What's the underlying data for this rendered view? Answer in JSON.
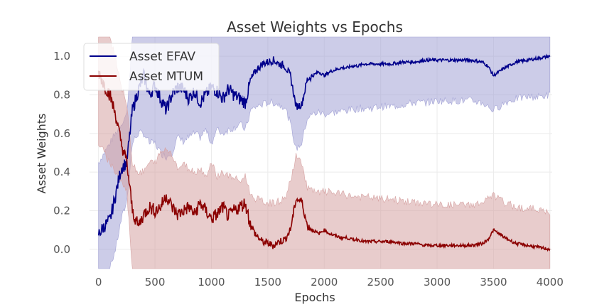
{
  "chart_data": {
    "type": "line",
    "title": "Asset Weights vs Epochs",
    "xlabel": "Epochs",
    "ylabel": "Asset Weights",
    "xlim": [
      -80,
      4020
    ],
    "ylim": [
      -0.1,
      1.1
    ],
    "xticks": [
      0,
      500,
      1000,
      1500,
      2000,
      2500,
      3000,
      3500,
      4000
    ],
    "yticks": [
      "0.0",
      "0.2",
      "0.4",
      "0.6",
      "0.8",
      "1.0"
    ],
    "grid": true,
    "legend_position": "top-left",
    "series": [
      {
        "name": "Asset EFAV",
        "color": "#00008b",
        "band_color": "#a3a3d6",
        "points": [
          [
            0,
            0.08
          ],
          [
            50,
            0.12
          ],
          [
            100,
            0.15
          ],
          [
            150,
            0.28
          ],
          [
            200,
            0.42
          ],
          [
            250,
            0.45
          ],
          [
            300,
            0.72
          ],
          [
            350,
            0.82
          ],
          [
            400,
            0.9
          ],
          [
            450,
            0.8
          ],
          [
            500,
            0.85
          ],
          [
            550,
            0.78
          ],
          [
            600,
            0.72
          ],
          [
            650,
            0.8
          ],
          [
            700,
            0.84
          ],
          [
            750,
            0.83
          ],
          [
            800,
            0.78
          ],
          [
            850,
            0.82
          ],
          [
            900,
            0.76
          ],
          [
            950,
            0.8
          ],
          [
            1000,
            0.84
          ],
          [
            1050,
            0.82
          ],
          [
            1100,
            0.78
          ],
          [
            1150,
            0.83
          ],
          [
            1200,
            0.8
          ],
          [
            1250,
            0.78
          ],
          [
            1300,
            0.76
          ],
          [
            1350,
            0.88
          ],
          [
            1400,
            0.93
          ],
          [
            1450,
            0.96
          ],
          [
            1500,
            0.97
          ],
          [
            1550,
            0.98
          ],
          [
            1600,
            0.96
          ],
          [
            1650,
            0.95
          ],
          [
            1700,
            0.9
          ],
          [
            1750,
            0.74
          ],
          [
            1800,
            0.75
          ],
          [
            1850,
            0.88
          ],
          [
            1900,
            0.9
          ],
          [
            1950,
            0.92
          ],
          [
            2000,
            0.9
          ],
          [
            2050,
            0.92
          ],
          [
            2100,
            0.93
          ],
          [
            2150,
            0.94
          ],
          [
            2200,
            0.94
          ],
          [
            2250,
            0.95
          ],
          [
            2300,
            0.95
          ],
          [
            2350,
            0.96
          ],
          [
            2400,
            0.96
          ],
          [
            2450,
            0.96
          ],
          [
            2500,
            0.96
          ],
          [
            2600,
            0.96
          ],
          [
            2700,
            0.97
          ],
          [
            2800,
            0.97
          ],
          [
            2900,
            0.98
          ],
          [
            3000,
            0.98
          ],
          [
            3100,
            0.98
          ],
          [
            3200,
            0.98
          ],
          [
            3300,
            0.98
          ],
          [
            3400,
            0.97
          ],
          [
            3450,
            0.95
          ],
          [
            3500,
            0.9
          ],
          [
            3550,
            0.92
          ],
          [
            3600,
            0.94
          ],
          [
            3700,
            0.97
          ],
          [
            3800,
            0.98
          ],
          [
            3900,
            0.99
          ],
          [
            4000,
            1.0
          ]
        ],
        "band": [
          [
            0,
            -0.1,
            0.45
          ],
          [
            50,
            -0.1,
            0.5
          ],
          [
            100,
            -0.1,
            0.55
          ],
          [
            150,
            0.0,
            0.6
          ],
          [
            200,
            0.15,
            0.65
          ],
          [
            250,
            0.25,
            0.7
          ],
          [
            300,
            0.55,
            1.1
          ],
          [
            350,
            0.6,
            1.1
          ],
          [
            400,
            0.6,
            1.1
          ],
          [
            450,
            0.55,
            1.1
          ],
          [
            500,
            0.55,
            1.1
          ],
          [
            550,
            0.5,
            1.1
          ],
          [
            600,
            0.48,
            1.1
          ],
          [
            650,
            0.5,
            1.1
          ],
          [
            700,
            0.58,
            1.1
          ],
          [
            750,
            0.56,
            1.1
          ],
          [
            800,
            0.58,
            1.1
          ],
          [
            850,
            0.6,
            1.1
          ],
          [
            900,
            0.58,
            1.1
          ],
          [
            950,
            0.62,
            1.1
          ],
          [
            1000,
            0.55,
            1.1
          ],
          [
            1050,
            0.62,
            1.1
          ],
          [
            1100,
            0.6,
            1.1
          ],
          [
            1150,
            0.62,
            1.1
          ],
          [
            1200,
            0.63,
            1.1
          ],
          [
            1250,
            0.65,
            1.1
          ],
          [
            1300,
            0.62,
            1.1
          ],
          [
            1350,
            0.72,
            1.1
          ],
          [
            1400,
            0.74,
            1.1
          ],
          [
            1450,
            0.75,
            1.1
          ],
          [
            1500,
            0.76,
            1.1
          ],
          [
            1550,
            0.76,
            1.1
          ],
          [
            1600,
            0.75,
            1.1
          ],
          [
            1650,
            0.74,
            1.1
          ],
          [
            1700,
            0.65,
            1.1
          ],
          [
            1750,
            0.52,
            1.1
          ],
          [
            1800,
            0.55,
            1.1
          ],
          [
            1850,
            0.68,
            1.1
          ],
          [
            1900,
            0.7,
            1.1
          ],
          [
            1950,
            0.71,
            1.1
          ],
          [
            2000,
            0.7,
            1.1
          ],
          [
            2100,
            0.71,
            1.1
          ],
          [
            2200,
            0.72,
            1.1
          ],
          [
            2300,
            0.73,
            1.1
          ],
          [
            2400,
            0.73,
            1.1
          ],
          [
            2500,
            0.74,
            1.1
          ],
          [
            2600,
            0.74,
            1.1
          ],
          [
            2700,
            0.75,
            1.1
          ],
          [
            2800,
            0.76,
            1.1
          ],
          [
            2900,
            0.76,
            1.1
          ],
          [
            3000,
            0.77,
            1.1
          ],
          [
            3100,
            0.77,
            1.1
          ],
          [
            3200,
            0.77,
            1.1
          ],
          [
            3300,
            0.77,
            1.1
          ],
          [
            3400,
            0.76,
            1.1
          ],
          [
            3500,
            0.72,
            1.1
          ],
          [
            3600,
            0.76,
            1.1
          ],
          [
            3700,
            0.78,
            1.1
          ],
          [
            3800,
            0.79,
            1.1
          ],
          [
            3900,
            0.79,
            1.1
          ],
          [
            4000,
            0.8,
            1.1
          ]
        ]
      },
      {
        "name": "Asset MTUM",
        "color": "#8b0000",
        "band_color": "#d6a3a3",
        "points": [
          [
            0,
            0.92
          ],
          [
            50,
            0.85
          ],
          [
            100,
            0.8
          ],
          [
            150,
            0.7
          ],
          [
            200,
            0.55
          ],
          [
            250,
            0.45
          ],
          [
            300,
            0.2
          ],
          [
            350,
            0.12
          ],
          [
            400,
            0.18
          ],
          [
            450,
            0.22
          ],
          [
            500,
            0.2
          ],
          [
            550,
            0.22
          ],
          [
            600,
            0.28
          ],
          [
            650,
            0.22
          ],
          [
            700,
            0.18
          ],
          [
            750,
            0.2
          ],
          [
            800,
            0.22
          ],
          [
            850,
            0.18
          ],
          [
            900,
            0.24
          ],
          [
            950,
            0.2
          ],
          [
            1000,
            0.16
          ],
          [
            1050,
            0.18
          ],
          [
            1100,
            0.22
          ],
          [
            1150,
            0.17
          ],
          [
            1200,
            0.2
          ],
          [
            1250,
            0.22
          ],
          [
            1300,
            0.24
          ],
          [
            1350,
            0.12
          ],
          [
            1400,
            0.07
          ],
          [
            1450,
            0.04
          ],
          [
            1500,
            0.03
          ],
          [
            1550,
            0.02
          ],
          [
            1600,
            0.04
          ],
          [
            1650,
            0.05
          ],
          [
            1700,
            0.1
          ],
          [
            1750,
            0.26
          ],
          [
            1800,
            0.25
          ],
          [
            1850,
            0.12
          ],
          [
            1900,
            0.1
          ],
          [
            1950,
            0.08
          ],
          [
            2000,
            0.1
          ],
          [
            2050,
            0.08
          ],
          [
            2100,
            0.07
          ],
          [
            2150,
            0.06
          ],
          [
            2200,
            0.06
          ],
          [
            2250,
            0.05
          ],
          [
            2300,
            0.05
          ],
          [
            2350,
            0.04
          ],
          [
            2400,
            0.04
          ],
          [
            2450,
            0.04
          ],
          [
            2500,
            0.04
          ],
          [
            2600,
            0.04
          ],
          [
            2700,
            0.03
          ],
          [
            2800,
            0.03
          ],
          [
            2900,
            0.02
          ],
          [
            3000,
            0.02
          ],
          [
            3100,
            0.02
          ],
          [
            3200,
            0.02
          ],
          [
            3300,
            0.02
          ],
          [
            3400,
            0.03
          ],
          [
            3450,
            0.05
          ],
          [
            3500,
            0.1
          ],
          [
            3550,
            0.08
          ],
          [
            3600,
            0.06
          ],
          [
            3700,
            0.03
          ],
          [
            3800,
            0.02
          ],
          [
            3900,
            0.01
          ],
          [
            4000,
            0.0
          ]
        ],
        "band": [
          [
            0,
            0.55,
            1.1
          ],
          [
            50,
            0.5,
            1.1
          ],
          [
            100,
            0.45,
            1.1
          ],
          [
            150,
            0.4,
            1.0
          ],
          [
            200,
            0.35,
            0.85
          ],
          [
            250,
            0.3,
            0.75
          ],
          [
            300,
            -0.1,
            0.45
          ],
          [
            350,
            -0.1,
            0.4
          ],
          [
            400,
            -0.1,
            0.4
          ],
          [
            450,
            -0.1,
            0.45
          ],
          [
            500,
            -0.1,
            0.45
          ],
          [
            550,
            -0.1,
            0.5
          ],
          [
            600,
            -0.1,
            0.52
          ],
          [
            650,
            -0.1,
            0.5
          ],
          [
            700,
            -0.1,
            0.42
          ],
          [
            750,
            -0.1,
            0.44
          ],
          [
            800,
            -0.1,
            0.42
          ],
          [
            850,
            -0.1,
            0.4
          ],
          [
            900,
            -0.1,
            0.42
          ],
          [
            950,
            -0.1,
            0.38
          ],
          [
            1000,
            -0.1,
            0.45
          ],
          [
            1050,
            -0.1,
            0.38
          ],
          [
            1100,
            -0.1,
            0.4
          ],
          [
            1150,
            -0.1,
            0.38
          ],
          [
            1200,
            -0.1,
            0.37
          ],
          [
            1250,
            -0.1,
            0.35
          ],
          [
            1300,
            -0.1,
            0.38
          ],
          [
            1350,
            -0.1,
            0.28
          ],
          [
            1400,
            -0.1,
            0.26
          ],
          [
            1450,
            -0.1,
            0.25
          ],
          [
            1500,
            -0.1,
            0.24
          ],
          [
            1550,
            -0.1,
            0.24
          ],
          [
            1600,
            -0.1,
            0.25
          ],
          [
            1650,
            -0.1,
            0.26
          ],
          [
            1700,
            -0.1,
            0.35
          ],
          [
            1750,
            -0.1,
            0.48
          ],
          [
            1800,
            -0.1,
            0.45
          ],
          [
            1850,
            -0.1,
            0.32
          ],
          [
            1900,
            -0.1,
            0.3
          ],
          [
            1950,
            -0.1,
            0.29
          ],
          [
            2000,
            -0.1,
            0.3
          ],
          [
            2100,
            -0.1,
            0.29
          ],
          [
            2200,
            -0.1,
            0.28
          ],
          [
            2300,
            -0.1,
            0.27
          ],
          [
            2400,
            -0.1,
            0.27
          ],
          [
            2500,
            -0.1,
            0.26
          ],
          [
            2600,
            -0.1,
            0.26
          ],
          [
            2700,
            -0.1,
            0.25
          ],
          [
            2800,
            -0.1,
            0.24
          ],
          [
            2900,
            -0.1,
            0.24
          ],
          [
            3000,
            -0.1,
            0.23
          ],
          [
            3100,
            -0.1,
            0.23
          ],
          [
            3200,
            -0.1,
            0.23
          ],
          [
            3300,
            -0.1,
            0.23
          ],
          [
            3400,
            -0.1,
            0.24
          ],
          [
            3500,
            -0.1,
            0.28
          ],
          [
            3600,
            -0.1,
            0.24
          ],
          [
            3700,
            -0.1,
            0.22
          ],
          [
            3800,
            -0.1,
            0.21
          ],
          [
            3900,
            -0.1,
            0.21
          ],
          [
            4000,
            -0.1,
            0.18
          ]
        ]
      }
    ]
  }
}
